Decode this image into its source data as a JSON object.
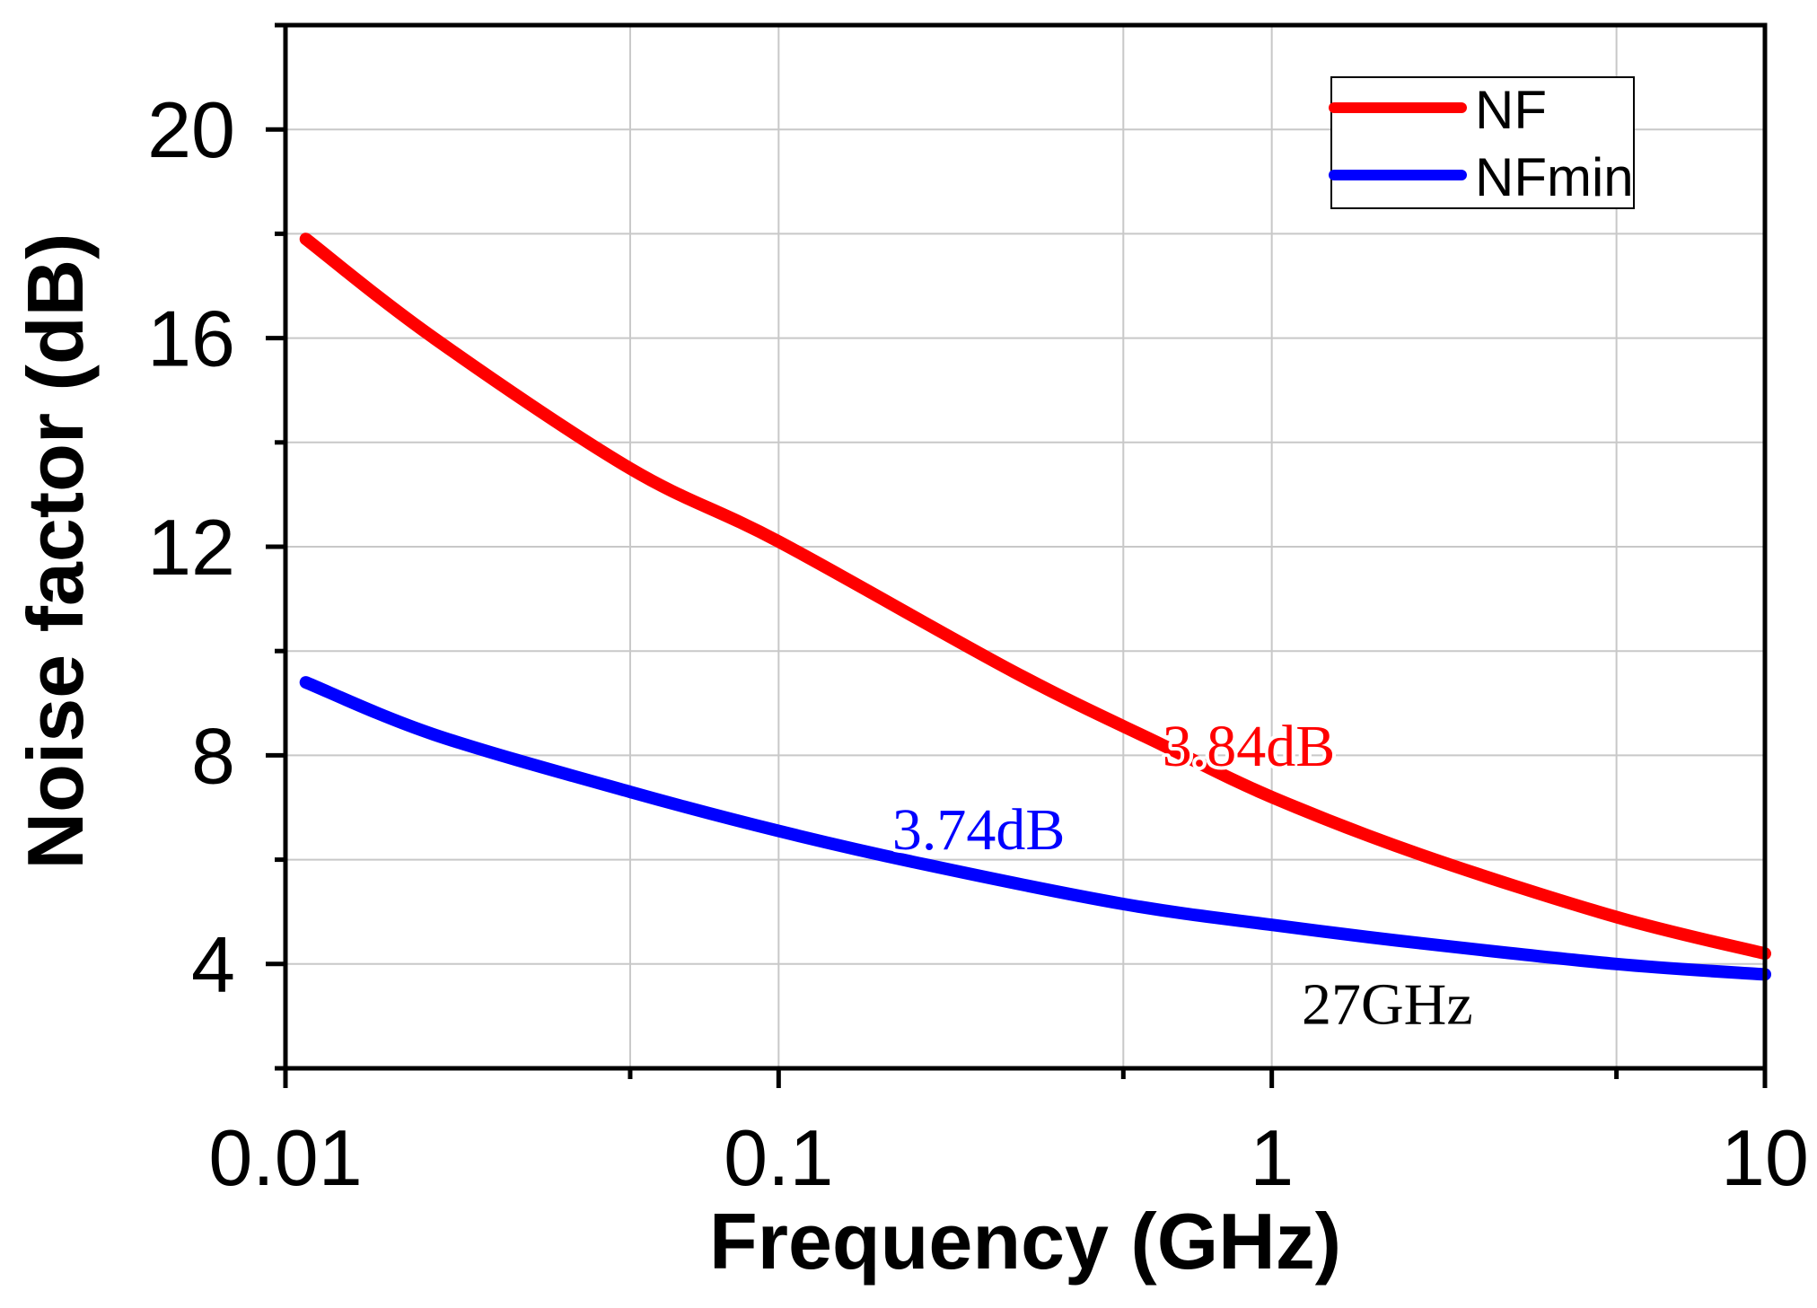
{
  "chart_data": {
    "type": "line",
    "xscale": "log",
    "xlabel": "Frequency (GHz)",
    "ylabel": "Noise factor (dB)",
    "xlim": [
      0.01,
      10
    ],
    "ylim": [
      2,
      22
    ],
    "xticks": [
      {
        "value": 0.01,
        "label": "0.01"
      },
      {
        "value": 0.1,
        "label": "0.1"
      },
      {
        "value": 1,
        "label": "1"
      },
      {
        "value": 10,
        "label": "10"
      }
    ],
    "xminor": [
      0.05,
      0.5,
      5
    ],
    "yticks": [
      {
        "value": 4,
        "label": "4"
      },
      {
        "value": 8,
        "label": "8"
      },
      {
        "value": 12,
        "label": "12"
      },
      {
        "value": 16,
        "label": "16"
      },
      {
        "value": 20,
        "label": "20"
      }
    ],
    "yminor": [
      2,
      6,
      10,
      14,
      18,
      22
    ],
    "grid": true,
    "legend": "top-right",
    "series": [
      {
        "name": "NF",
        "color": "#ff0000",
        "x": [
          0.011,
          0.02,
          0.05,
          0.1,
          0.3,
          0.6,
          1,
          2,
          5,
          10
        ],
        "values": [
          17.9,
          16.0,
          13.5,
          12.1,
          9.6,
          8.2,
          7.2,
          6.1,
          4.9,
          4.2
        ]
      },
      {
        "name": "NFmin",
        "color": "#0000ff",
        "x": [
          0.011,
          0.02,
          0.05,
          0.1,
          0.2,
          0.5,
          1,
          2,
          5,
          10
        ],
        "values": [
          9.4,
          8.4,
          7.3,
          6.55,
          5.9,
          5.15,
          4.75,
          4.4,
          4.0,
          3.8
        ]
      }
    ],
    "annotations": [
      {
        "text": "3.84dB",
        "x": 0.6,
        "y": 7.8,
        "color": "#ff0000"
      },
      {
        "text": "3.74dB",
        "x": 0.17,
        "y": 6.2,
        "color": "#0000ff"
      },
      {
        "text": "27GHz",
        "x": 1.15,
        "y": 2.85,
        "color": "#000000"
      }
    ]
  }
}
